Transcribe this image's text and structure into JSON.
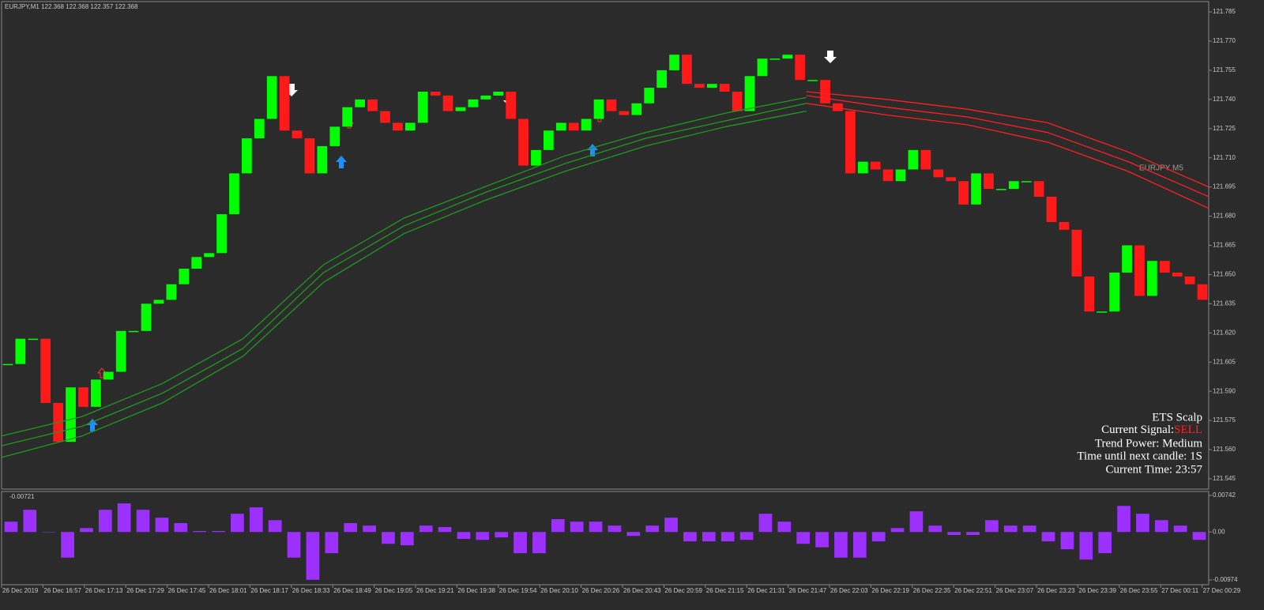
{
  "chart_data": [
    {
      "type": "candlestick",
      "title": "EURJPY,M1  122.368 122.368 122.357 122.368",
      "close": [
        121.604,
        121.617,
        121.617,
        121.584,
        121.564,
        121.592,
        121.582,
        121.596,
        121.6,
        121.621,
        121.621,
        121.635,
        121.637,
        121.645,
        121.653,
        121.659,
        121.661,
        121.681,
        121.702,
        121.72,
        121.73,
        121.752,
        121.724,
        121.72,
        121.702,
        121.716,
        121.726,
        121.736,
        121.74,
        121.734,
        121.728,
        121.724,
        121.728,
        121.744,
        121.742,
        121.734,
        121.736,
        121.74,
        121.742,
        121.744,
        121.73,
        121.706,
        121.714,
        121.724,
        121.728,
        121.724,
        121.73,
        121.74,
        121.734,
        121.732,
        121.738,
        121.746,
        121.755,
        121.763,
        121.748,
        121.746,
        121.748,
        121.744,
        121.734,
        121.752,
        121.761,
        121.761,
        121.763,
        121.75,
        121.75,
        121.738,
        121.734,
        121.702,
        121.708,
        121.704,
        121.698,
        121.704,
        121.714,
        121.704,
        121.7,
        121.698,
        121.686,
        121.702,
        121.694,
        121.694,
        121.698,
        121.698,
        121.69,
        121.677,
        121.673,
        121.649,
        121.631,
        121.631,
        121.651,
        121.665,
        121.639,
        121.657,
        121.651,
        121.649,
        121.645,
        121.637
      ],
      "up_color": "#00ff00",
      "down_color": "#ff1a1a",
      "lines": [
        {
          "color": "#1f9a1f",
          "values": [
            121.567,
            121.577,
            121.594,
            121.617,
            121.655,
            121.679,
            121.695,
            121.711,
            121.723,
            121.733,
            121.741,
            null,
            null,
            null,
            null,
            null
          ]
        },
        {
          "color": "#1f9a1f",
          "values": [
            121.562,
            121.572,
            121.589,
            121.612,
            121.651,
            121.675,
            121.692,
            121.707,
            121.72,
            121.729,
            121.738,
            null,
            null,
            null,
            null,
            null
          ]
        },
        {
          "color": "#1f9a1f",
          "values": [
            121.556,
            121.567,
            121.584,
            121.608,
            121.646,
            121.671,
            121.688,
            121.703,
            121.716,
            121.726,
            121.734,
            null,
            null,
            null,
            null,
            null
          ]
        },
        {
          "color": "#ff2020",
          "values": [
            null,
            null,
            null,
            null,
            null,
            null,
            null,
            null,
            null,
            null,
            121.744,
            121.74,
            121.735,
            121.728,
            121.713,
            121.695
          ]
        },
        {
          "color": "#ff2020",
          "values": [
            null,
            null,
            null,
            null,
            null,
            null,
            null,
            null,
            null,
            null,
            121.742,
            121.736,
            121.731,
            121.723,
            121.708,
            121.69
          ]
        },
        {
          "color": "#ff2020",
          "values": [
            null,
            null,
            null,
            null,
            null,
            null,
            null,
            null,
            null,
            null,
            121.738,
            121.732,
            121.727,
            121.718,
            121.703,
            121.684
          ]
        }
      ],
      "ylim": [
        121.5397,
        121.7903
      ],
      "yticks": [
        121.785,
        {
          "value": 121.77,
          "label": "121.770"
        },
        121.755,
        {
          "value": 121.74,
          "label": "121.740"
        },
        121.725,
        {
          "value": 121.71,
          "label": "121.710"
        },
        121.695,
        {
          "value": 121.68,
          "label": "121.680"
        },
        121.665,
        {
          "value": 121.65,
          "label": "121.650"
        },
        121.635,
        {
          "value": 121.62,
          "label": "121.620"
        },
        121.605,
        {
          "value": 121.59,
          "label": "121.590"
        },
        121.575,
        {
          "value": 121.56,
          "label": "121.560"
        },
        121.545
      ],
      "time_labels": [
        "26 Dec 2019",
        "26 Dec 16:57",
        "26 Dec 17:13",
        "26 Dec 17:29",
        "26 Dec 17:45",
        "26 Dec 18:01",
        "26 Dec 18:17",
        "26 Dec 18:33",
        "26 Dec 18:49",
        "26 Dec 19:05",
        "26 Dec 19:21",
        "26 Dec 19:38",
        "26 Dec 19:54",
        "26 Dec 20:10",
        "26 Dec 20:26",
        "26 Dec 20:43",
        "26 Dec 20:59",
        "26 Dec 21:15",
        "26 Dec 21:31",
        "26 Dec 21:47",
        "26 Dec 22:03",
        "26 Dec 22:19",
        "26 Dec 22:35",
        "26 Dec 22:51",
        "26 Dec 23:07",
        "26 Dec 23:23",
        "26 Dec 23:39",
        "26 Dec 23:55",
        "27 Dec 00:11",
        "27 Dec 00:29"
      ],
      "overlay_label": "EURJPY M5"
    },
    {
      "type": "bar",
      "title": "-0.00721",
      "color": "#9b30ff",
      "values": [
        0.0021,
        0.0045,
        0,
        -0.0052,
        0.0008,
        0.0045,
        0.0058,
        0.0045,
        0.0029,
        0.0018,
        0.0002,
        0.0002,
        0.0037,
        0.005,
        0.0024,
        -0.0052,
        -0.0097,
        -0.0043,
        0.0018,
        0.0013,
        -0.0024,
        -0.0027,
        0.0013,
        0.001,
        -0.0014,
        -0.0016,
        -0.0011,
        -0.0043,
        -0.0043,
        0.0026,
        0.0021,
        0.0021,
        0.0013,
        -0.0008,
        0.0013,
        0.0029,
        -0.0019,
        -0.0019,
        -0.0019,
        -0.0016,
        0.0037,
        0.0021,
        -0.0024,
        -0.0031,
        -0.0052,
        -0.0052,
        -0.0019,
        0.0008,
        0.0042,
        0.0013,
        -0.0006,
        -0.0006,
        0.0024,
        0.0013,
        0.0013,
        -0.0019,
        -0.0035,
        -0.0056,
        -0.0043,
        0.0053,
        0.0037,
        0.0024,
        0.0013,
        -0.0016
      ],
      "ylim": [
        -0.0107,
        0.00822
      ],
      "yticks": [
        0.00742,
        {
          "value": 0,
          "label": "0.00"
        },
        -0.00974
      ]
    }
  ],
  "panel": {
    "name": "ETS Scalp",
    "signal_label": "Current Signal:",
    "signal": "SELL",
    "trend": "Trend Power: Medium",
    "timer": "Time until next candle: 1S",
    "time": "Current Time: 23:57"
  }
}
